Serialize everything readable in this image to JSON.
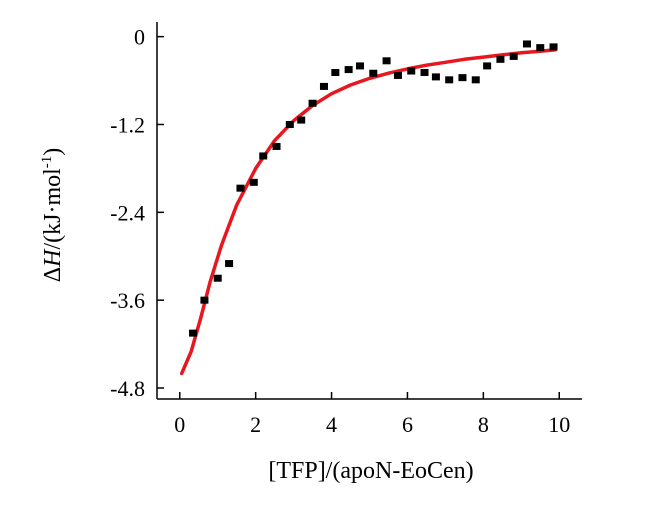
{
  "chart_data": {
    "type": "scatter",
    "xlabel": "[TFP]/(apoN-EoCen)",
    "ylabel_parts": {
      "delta": "Δ",
      "var": "H",
      "unit": "/(kJ·mol",
      "exp": "-1",
      "close": ")"
    },
    "xlim": [
      -0.6,
      10.6
    ],
    "ylim": [
      -4.95,
      0.2
    ],
    "x_ticks": [
      0,
      2,
      4,
      6,
      8,
      10
    ],
    "x_tick_labels": [
      "0",
      "2",
      "4",
      "6",
      "8",
      "10"
    ],
    "y_ticks": [
      0,
      -1.2,
      -2.4,
      -3.6,
      -4.8
    ],
    "y_tick_labels": [
      "0",
      "-1.2",
      "-2.4",
      "-3.6",
      "-4.8"
    ],
    "grid": false,
    "series": [
      {
        "kind": "points",
        "color": "#000000",
        "x": [
          0.35,
          0.65,
          1.0,
          1.3,
          1.6,
          1.95,
          2.2,
          2.55,
          2.9,
          3.2,
          3.5,
          3.8,
          4.1,
          4.45,
          4.75,
          5.1,
          5.45,
          5.75,
          6.1,
          6.45,
          6.75,
          7.1,
          7.45,
          7.8,
          8.1,
          8.45,
          8.8,
          9.15,
          9.5,
          9.85
        ],
        "y": [
          -4.05,
          -3.6,
          -3.3,
          -3.1,
          -2.07,
          -1.99,
          -1.63,
          -1.5,
          -1.2,
          -1.14,
          -0.91,
          -0.68,
          -0.49,
          -0.45,
          -0.4,
          -0.5,
          -0.33,
          -0.53,
          -0.47,
          -0.49,
          -0.55,
          -0.59,
          -0.56,
          -0.59,
          -0.4,
          -0.31,
          -0.27,
          -0.1,
          -0.15,
          -0.14
        ]
      },
      {
        "kind": "fit",
        "color": "#e8161f",
        "x": [
          0.05,
          0.3,
          0.55,
          0.8,
          1.1,
          1.5,
          2.0,
          2.5,
          3.0,
          3.5,
          4.0,
          4.5,
          5.0,
          5.5,
          6.0,
          6.5,
          7.0,
          7.5,
          8.0,
          8.5,
          9.0,
          9.5,
          9.9
        ],
        "y": [
          -4.6,
          -4.3,
          -3.85,
          -3.35,
          -2.85,
          -2.3,
          -1.8,
          -1.42,
          -1.15,
          -0.94,
          -0.78,
          -0.66,
          -0.57,
          -0.5,
          -0.44,
          -0.39,
          -0.35,
          -0.31,
          -0.28,
          -0.25,
          -0.22,
          -0.2,
          -0.18
        ]
      }
    ]
  }
}
